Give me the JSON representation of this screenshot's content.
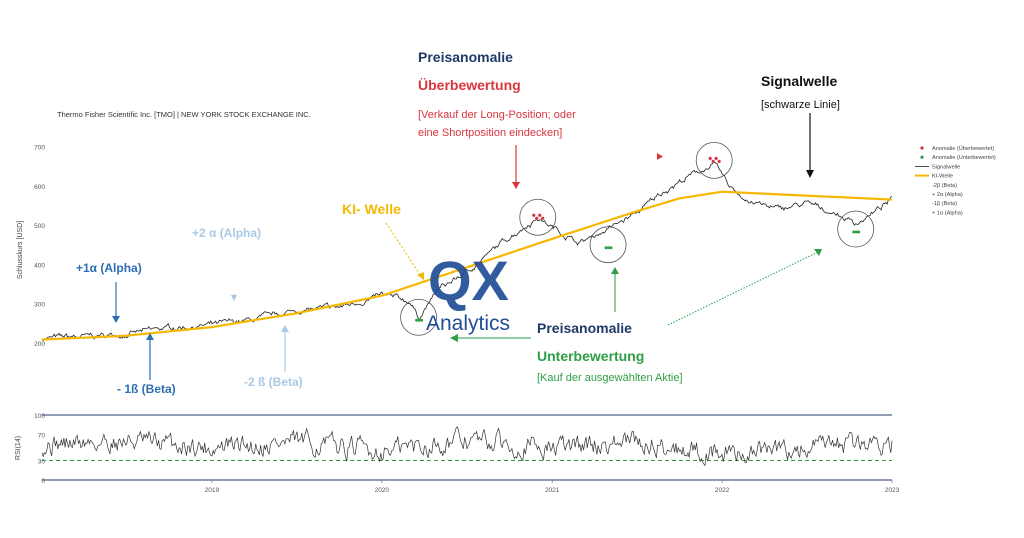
{
  "chart_data": [
    {
      "type": "line",
      "title": "Thermo Fisher Scientific Inc. [TMO] | NEW YORK STOCK EXCHANGE INC.",
      "ylabel": "Schlusskurs [USD]",
      "xlabel": "",
      "ylim": [
        100,
        750
      ],
      "yticks": [
        200,
        300,
        400,
        500,
        600,
        700
      ],
      "xticks": [
        "2019",
        "2020",
        "2021",
        "2022",
        "2023"
      ],
      "xrange": [
        "2018-01-01",
        "2023-01-01"
      ],
      "grid": false,
      "legend_position": "right",
      "legend": [
        {
          "name": "Anomalie (Überbewertet)",
          "color": "#d9363e",
          "style": "marker"
        },
        {
          "name": "Anomalie (Unterbewertet)",
          "color": "#2e9e47",
          "style": "marker"
        },
        {
          "name": "Signalwelle",
          "color": "#222222",
          "style": "line"
        },
        {
          "name": "KI-Welle",
          "color": "#f5b800",
          "style": "line"
        },
        {
          "name": "-2β (Beta)",
          "color": "",
          "style": "none"
        },
        {
          "name": "+ 2α (Alpha)",
          "color": "",
          "style": "none"
        },
        {
          "name": "-1β (Beta)",
          "color": "",
          "style": "none"
        },
        {
          "name": "+ 1α (Alpha)",
          "color": "",
          "style": "none"
        }
      ],
      "series": [
        {
          "name": "KI-Welle",
          "color": "#f5b800",
          "x": [
            "2018-01-01",
            "2018-07-01",
            "2019-01-01",
            "2019-07-01",
            "2020-01-01",
            "2020-07-01",
            "2021-01-01",
            "2021-07-01",
            "2021-10-01",
            "2022-01-01",
            "2022-07-01",
            "2023-01-01"
          ],
          "values": [
            208,
            218,
            240,
            275,
            320,
            392,
            465,
            535,
            568,
            585,
            575,
            565
          ]
        },
        {
          "name": "Signalwelle",
          "color": "#222222",
          "x": [
            "2018-01-01",
            "2018-04-01",
            "2018-07-01",
            "2018-10-01",
            "2019-01-01",
            "2019-04-01",
            "2019-07-01",
            "2019-10-01",
            "2020-01-01",
            "2020-03-01",
            "2020-03-20",
            "2020-05-01",
            "2020-07-01",
            "2020-10-01",
            "2020-12-01",
            "2021-01-01",
            "2021-03-01",
            "2021-05-01",
            "2021-07-01",
            "2021-09-01",
            "2021-11-01",
            "2021-12-15",
            "2022-01-15",
            "2022-03-01",
            "2022-05-01",
            "2022-07-01",
            "2022-09-01",
            "2022-10-15",
            "2022-11-15",
            "2023-01-01"
          ],
          "values": [
            212,
            215,
            222,
            238,
            245,
            258,
            282,
            290,
            320,
            305,
            265,
            335,
            380,
            470,
            520,
            495,
            455,
            490,
            530,
            590,
            630,
            655,
            600,
            560,
            540,
            555,
            530,
            505,
            525,
            565
          ]
        }
      ],
      "anomalies_over": [
        {
          "x": "2020-12-01",
          "y": 520
        },
        {
          "x": "2021-12-15",
          "y": 665
        }
      ],
      "anomalies_under": [
        {
          "x": "2020-03-20",
          "y": 265
        },
        {
          "x": "2021-05-01",
          "y": 450
        },
        {
          "x": "2022-10-15",
          "y": 490
        }
      ]
    },
    {
      "type": "line",
      "title": "",
      "ylabel": "RSI(14)",
      "ylim": [
        0,
        100
      ],
      "yticks": [
        0,
        30,
        70,
        100
      ],
      "xticks": [
        "2019",
        "2020",
        "2021",
        "2022",
        "2023"
      ],
      "reference_line": 30,
      "series": [
        {
          "name": "RSI(14)",
          "color": "#333333",
          "x": [
            "2018-01-01",
            "2018-07-01",
            "2019-01-01",
            "2019-07-01",
            "2020-01-01",
            "2020-07-01",
            "2021-01-01",
            "2021-07-01",
            "2022-01-01",
            "2022-07-01",
            "2023-01-01"
          ],
          "values": [
            55,
            60,
            50,
            58,
            45,
            62,
            50,
            58,
            40,
            48,
            60
          ]
        }
      ]
    }
  ],
  "annotations": {
    "overval_title": "Preisanomalie",
    "overval_sub": "Überbewertung",
    "overval_note_1": "[Verkauf der Long-Position; oder",
    "overval_note_2": "eine Shortposition eindecken]",
    "signal_title": "Signalwelle",
    "signal_note": "[schwarze Linie]",
    "ki_label": "KI- Welle",
    "alpha2_label": "+2 α (Alpha)",
    "alpha1_label": "+1α (Alpha)",
    "beta1_label": "- 1ß (Beta)",
    "beta2_label": "-2 ß (Beta)",
    "underval_title": "Preisanomalie",
    "underval_sub": "Unterbewertung",
    "underval_note": "[Kauf der ausgewählten Aktie]"
  },
  "logo": {
    "main": "QX",
    "sub": "Analytics"
  },
  "colors": {
    "navy": "#1f3a68",
    "red": "#d9363e",
    "green": "#2e9e47",
    "orange": "#f5b800",
    "blue": "#2d6fb3",
    "lightblue": "#a9c9e6",
    "logo": "#1f4e96"
  }
}
